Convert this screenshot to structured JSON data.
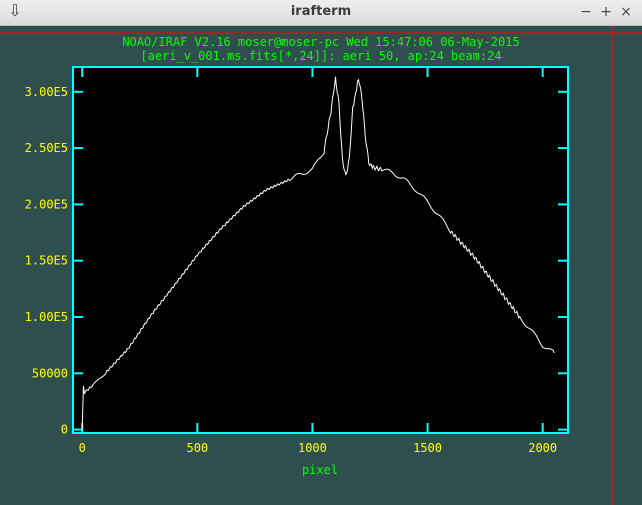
{
  "window": {
    "title": "irafterm",
    "menu_glyph": "⇩",
    "minimize_glyph": "−",
    "maximize_glyph": "+",
    "close_glyph": "×"
  },
  "colors": {
    "background": "#2f4f4f",
    "header_text": "#00ff00",
    "axis_frame": "#00ffff",
    "tick_labels": "#ffff00",
    "plot_area": "#000000",
    "trace": "#ffffff",
    "crosshair": "#ff0000"
  },
  "plot": {
    "header_line1": "NOAO/IRAF V2.16 moser@moser-pc Wed 15:47:06 06-May-2015",
    "header_line2": "[aeri_v_001.ms.fits[*,24]]: aeri 50, ap:24 beam:24",
    "xlabel": "pixel",
    "x_ticks": [
      "0",
      "500",
      "1000",
      "1500",
      "2000"
    ],
    "y_ticks": [
      "0",
      "50000",
      "1.00E5",
      "1.50E5",
      "2.00E5",
      "2.50E5",
      "3.00E5"
    ]
  },
  "chart_data": {
    "type": "line",
    "xlim": [
      -40,
      2110
    ],
    "ylim": [
      -3000,
      322000
    ],
    "x_ticks": [
      0,
      500,
      1000,
      1500,
      2000
    ],
    "y_ticks": [
      0,
      50000,
      100000,
      150000,
      200000,
      250000,
      300000
    ],
    "series": [
      {
        "name": "aeri 50, ap:24 beam:24",
        "x": [
          0,
          5,
          10,
          50,
          100,
          200,
          300,
          400,
          500,
          600,
          700,
          800,
          900,
          950,
          1000,
          1050,
          1080,
          1100,
          1115,
          1130,
          1145,
          1160,
          1175,
          1200,
          1215,
          1230,
          1245,
          1260,
          1300,
          1350,
          1400,
          1450,
          1500,
          1550,
          1600,
          1700,
          1800,
          1900,
          1950,
          2000,
          2050
        ],
        "y": [
          0,
          38000,
          33000,
          40000,
          50000,
          72000,
          102000,
          128000,
          155000,
          178000,
          198000,
          213000,
          222000,
          227000,
          231000,
          247000,
          282000,
          312000,
          290000,
          240000,
          225000,
          240000,
          285000,
          312000,
          295000,
          260000,
          237000,
          233000,
          231000,
          228000,
          222000,
          213000,
          202000,
          190000,
          176000,
          154000,
          127000,
          100000,
          88000,
          75000,
          68000
        ]
      }
    ]
  }
}
